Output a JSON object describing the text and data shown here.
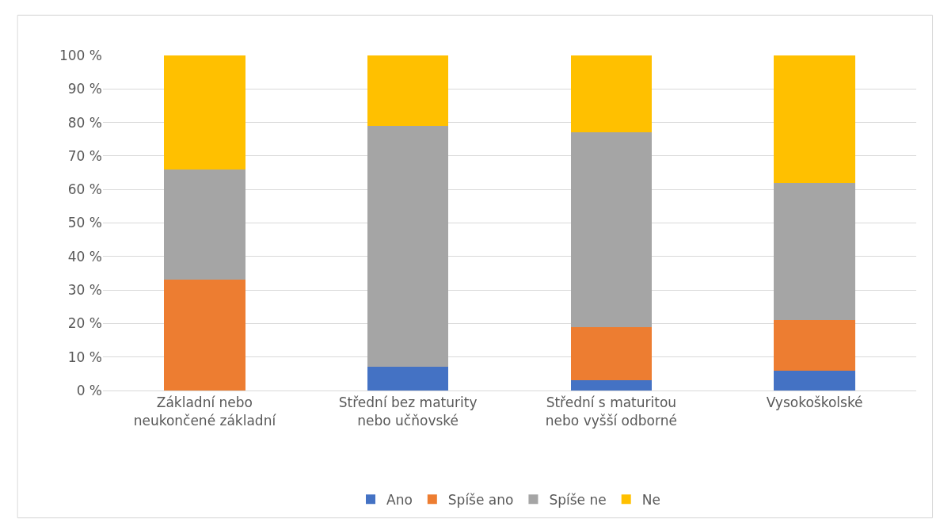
{
  "chart_data": {
    "type": "bar",
    "stacked": true,
    "categories": [
      "Základní nebo neukončené základní",
      "Střední bez maturity nebo učňovské",
      "Střední s maturitou nebo vyšší odborné",
      "Vysokoškolské"
    ],
    "series": [
      {
        "name": "Ano",
        "color": "#4472c4",
        "values": [
          0,
          7,
          3,
          6
        ]
      },
      {
        "name": "Spíše ano",
        "color": "#ed7d31",
        "values": [
          33,
          0,
          16,
          15
        ]
      },
      {
        "name": "Spíše ne",
        "color": "#a5a5a5",
        "values": [
          33,
          72,
          58,
          41
        ]
      },
      {
        "name": "Ne",
        "color": "#ffc000",
        "values": [
          34,
          21,
          23,
          38
        ]
      }
    ],
    "ylim": [
      0,
      100
    ],
    "yticks": [
      {
        "value": 0,
        "label": "0 %"
      },
      {
        "value": 10,
        "label": "10 %"
      },
      {
        "value": 20,
        "label": "20 %"
      },
      {
        "value": 30,
        "label": "30 %"
      },
      {
        "value": 40,
        "label": "40 %"
      },
      {
        "value": 50,
        "label": "50 %"
      },
      {
        "value": 60,
        "label": "60 %"
      },
      {
        "value": 70,
        "label": "70 %"
      },
      {
        "value": 80,
        "label": "80 %"
      },
      {
        "value": 90,
        "label": "90 %"
      },
      {
        "value": 100,
        "label": "100 %"
      }
    ],
    "grid": "y",
    "legend": "bottom"
  }
}
